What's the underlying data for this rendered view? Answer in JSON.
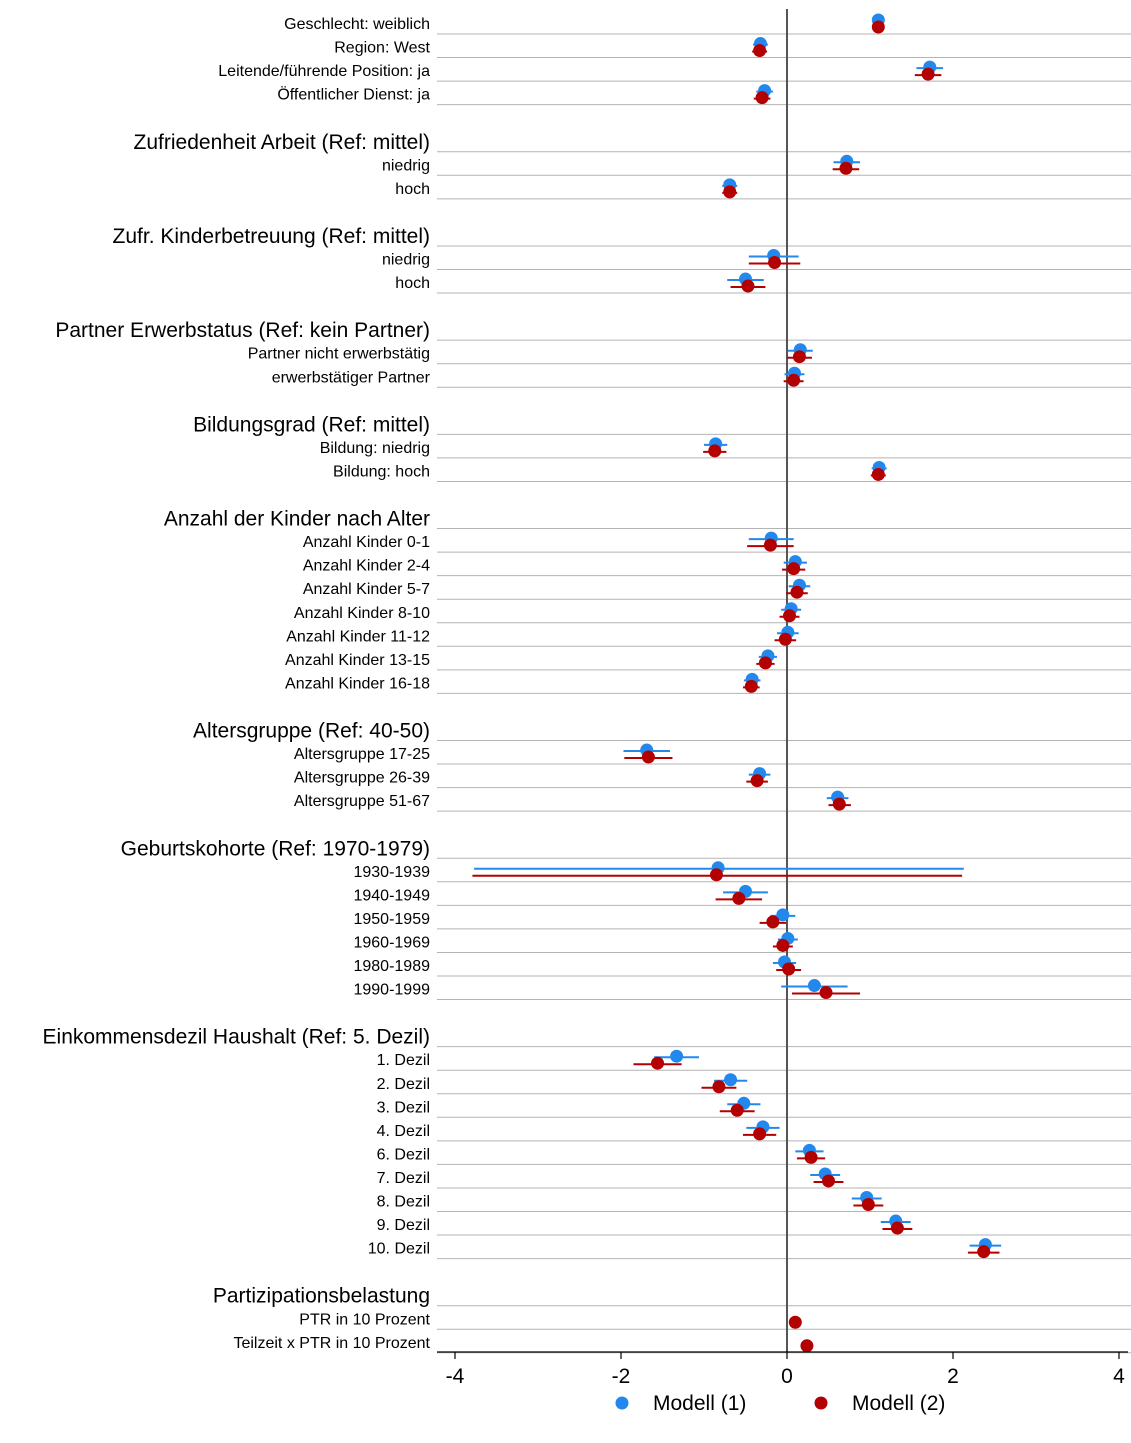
{
  "chart_data": {
    "type": "forest",
    "xlim": [
      -4,
      4
    ],
    "xticks": [
      -4,
      -2,
      0,
      2,
      4
    ],
    "xtick_labels": [
      "-4",
      "-2",
      "0",
      "2",
      "4"
    ],
    "reference_line": 0,
    "legend": {
      "placement": "bottom-center",
      "entries": [
        {
          "label": "Modell (1)",
          "color": "#2288ee"
        },
        {
          "label": "Modell (2)",
          "color": "#b30000"
        }
      ]
    },
    "rows": [
      {
        "kind": "item",
        "label": "Geschlecht: weiblich",
        "m1": [
          1.1,
          1.03,
          1.17
        ],
        "m2": [
          1.1,
          1.03,
          1.17
        ]
      },
      {
        "kind": "item",
        "label": "Region: West",
        "m1": [
          -0.32,
          -0.41,
          -0.23
        ],
        "m2": [
          -0.33,
          -0.42,
          -0.24
        ]
      },
      {
        "kind": "item",
        "label": "Leitende/führende Position: ja",
        "m1": [
          1.72,
          1.56,
          1.88
        ],
        "m2": [
          1.7,
          1.54,
          1.86
        ]
      },
      {
        "kind": "item",
        "label": "Öffentlicher Dienst: ja",
        "m1": [
          -0.27,
          -0.37,
          -0.17
        ],
        "m2": [
          -0.3,
          -0.4,
          -0.2
        ]
      },
      {
        "kind": "header",
        "label": "Zufriedenheit Arbeit (Ref: mittel)"
      },
      {
        "kind": "item",
        "label": "niedrig",
        "m1": [
          0.72,
          0.56,
          0.88
        ],
        "m2": [
          0.71,
          0.55,
          0.87
        ]
      },
      {
        "kind": "item",
        "label": "hoch",
        "m1": [
          -0.69,
          -0.78,
          -0.6
        ],
        "m2": [
          -0.69,
          -0.78,
          -0.6
        ]
      },
      {
        "kind": "header",
        "label": "Zufr. Kinderbetreuung (Ref: mittel)"
      },
      {
        "kind": "item",
        "label": "niedrig",
        "m1": [
          -0.16,
          -0.46,
          0.14
        ],
        "m2": [
          -0.15,
          -0.46,
          0.16
        ]
      },
      {
        "kind": "item",
        "label": "hoch",
        "m1": [
          -0.5,
          -0.72,
          -0.28
        ],
        "m2": [
          -0.47,
          -0.68,
          -0.26
        ]
      },
      {
        "kind": "header",
        "label": "Partner Erwerbstatus (Ref: kein Partner)"
      },
      {
        "kind": "item",
        "label": "Partner nicht erwerbstätig",
        "m1": [
          0.16,
          0.01,
          0.31
        ],
        "m2": [
          0.15,
          0.0,
          0.3
        ]
      },
      {
        "kind": "item",
        "label": "erwerbstätiger Partner",
        "m1": [
          0.09,
          -0.03,
          0.21
        ],
        "m2": [
          0.08,
          -0.04,
          0.2
        ]
      },
      {
        "kind": "header",
        "label": "Bildungsgrad (Ref: mittel)"
      },
      {
        "kind": "item",
        "label": "Bildung: niedrig",
        "m1": [
          -0.86,
          -1.0,
          -0.72
        ],
        "m2": [
          -0.87,
          -1.01,
          -0.73
        ]
      },
      {
        "kind": "item",
        "label": "Bildung: hoch",
        "m1": [
          1.11,
          1.02,
          1.2
        ],
        "m2": [
          1.1,
          1.01,
          1.19
        ]
      },
      {
        "kind": "header",
        "label": "Anzahl der Kinder nach Alter"
      },
      {
        "kind": "item",
        "label": "Anzahl Kinder 0-1",
        "m1": [
          -0.19,
          -0.46,
          0.08
        ],
        "m2": [
          -0.2,
          -0.48,
          0.08
        ]
      },
      {
        "kind": "item",
        "label": "Anzahl Kinder 2-4",
        "m1": [
          0.1,
          -0.04,
          0.24
        ],
        "m2": [
          0.08,
          -0.06,
          0.22
        ]
      },
      {
        "kind": "item",
        "label": "Anzahl Kinder 5-7",
        "m1": [
          0.15,
          0.02,
          0.28
        ],
        "m2": [
          0.12,
          -0.01,
          0.25
        ]
      },
      {
        "kind": "item",
        "label": "Anzahl Kinder 8-10",
        "m1": [
          0.05,
          -0.07,
          0.17
        ],
        "m2": [
          0.03,
          -0.09,
          0.15
        ]
      },
      {
        "kind": "item",
        "label": "Anzahl Kinder 11-12",
        "m1": [
          0.01,
          -0.12,
          0.14
        ],
        "m2": [
          -0.02,
          -0.15,
          0.11
        ]
      },
      {
        "kind": "item",
        "label": "Anzahl Kinder 13-15",
        "m1": [
          -0.23,
          -0.34,
          -0.12
        ],
        "m2": [
          -0.26,
          -0.37,
          -0.15
        ]
      },
      {
        "kind": "item",
        "label": "Anzahl Kinder 16-18",
        "m1": [
          -0.42,
          -0.52,
          -0.32
        ],
        "m2": [
          -0.43,
          -0.53,
          -0.33
        ]
      },
      {
        "kind": "header",
        "label": "Altersgruppe (Ref: 40-50)"
      },
      {
        "kind": "item",
        "label": "Altersgruppe 17-25",
        "m1": [
          -1.69,
          -1.97,
          -1.41
        ],
        "m2": [
          -1.67,
          -1.96,
          -1.38
        ]
      },
      {
        "kind": "item",
        "label": "Altersgruppe 26-39",
        "m1": [
          -0.33,
          -0.46,
          -0.2
        ],
        "m2": [
          -0.36,
          -0.49,
          -0.23
        ]
      },
      {
        "kind": "item",
        "label": "Altersgruppe 51-67",
        "m1": [
          0.61,
          0.48,
          0.74
        ],
        "m2": [
          0.63,
          0.5,
          0.77
        ]
      },
      {
        "kind": "header",
        "label": "Geburtskohorte (Ref: 1970-1979)"
      },
      {
        "kind": "item",
        "label": "1930-1939",
        "m1": [
          -0.83,
          -3.77,
          2.13
        ],
        "m2": [
          -0.85,
          -3.79,
          2.11
        ]
      },
      {
        "kind": "item",
        "label": "1940-1949",
        "m1": [
          -0.5,
          -0.77,
          -0.23
        ],
        "m2": [
          -0.58,
          -0.86,
          -0.3
        ]
      },
      {
        "kind": "item",
        "label": "1950-1959",
        "m1": [
          -0.05,
          -0.2,
          0.1
        ],
        "m2": [
          -0.17,
          -0.33,
          -0.01
        ]
      },
      {
        "kind": "item",
        "label": "1960-1969",
        "m1": [
          0.01,
          -0.11,
          0.13
        ],
        "m2": [
          -0.05,
          -0.17,
          0.07
        ]
      },
      {
        "kind": "item",
        "label": "1980-1989",
        "m1": [
          -0.03,
          -0.17,
          0.11
        ],
        "m2": [
          0.02,
          -0.13,
          0.17
        ]
      },
      {
        "kind": "item",
        "label": "1990-1999",
        "m1": [
          0.33,
          -0.07,
          0.73
        ],
        "m2": [
          0.47,
          0.06,
          0.88
        ]
      },
      {
        "kind": "header",
        "label": "Einkommensdezil Haushalt (Ref: 5. Dezil)"
      },
      {
        "kind": "item",
        "label": "1. Dezil",
        "m1": [
          -1.33,
          -1.6,
          -1.06
        ],
        "m2": [
          -1.56,
          -1.85,
          -1.27
        ]
      },
      {
        "kind": "item",
        "label": "2. Dezil",
        "m1": [
          -0.68,
          -0.88,
          -0.48
        ],
        "m2": [
          -0.82,
          -1.03,
          -0.61
        ]
      },
      {
        "kind": "item",
        "label": "3. Dezil",
        "m1": [
          -0.52,
          -0.72,
          -0.32
        ],
        "m2": [
          -0.6,
          -0.81,
          -0.39
        ]
      },
      {
        "kind": "item",
        "label": "4. Dezil",
        "m1": [
          -0.29,
          -0.49,
          -0.09
        ],
        "m2": [
          -0.33,
          -0.53,
          -0.13
        ]
      },
      {
        "kind": "item",
        "label": "6. Dezil",
        "m1": [
          0.27,
          0.1,
          0.44
        ],
        "m2": [
          0.29,
          0.12,
          0.46
        ]
      },
      {
        "kind": "item",
        "label": "7. Dezil",
        "m1": [
          0.46,
          0.28,
          0.64
        ],
        "m2": [
          0.5,
          0.32,
          0.68
        ]
      },
      {
        "kind": "item",
        "label": "8. Dezil",
        "m1": [
          0.96,
          0.78,
          1.14
        ],
        "m2": [
          0.98,
          0.8,
          1.16
        ]
      },
      {
        "kind": "item",
        "label": "9. Dezil",
        "m1": [
          1.31,
          1.13,
          1.49
        ],
        "m2": [
          1.33,
          1.15,
          1.51
        ]
      },
      {
        "kind": "item",
        "label": "10. Dezil",
        "m1": [
          2.39,
          2.2,
          2.58
        ],
        "m2": [
          2.37,
          2.18,
          2.56
        ]
      },
      {
        "kind": "header",
        "label": "Partizipationsbelastung"
      },
      {
        "kind": "item",
        "label": "PTR in 10 Prozent",
        "m1": null,
        "m2": [
          0.1,
          0.09,
          0.11
        ]
      },
      {
        "kind": "item",
        "label": "Teilzeit x PTR in 10 Prozent",
        "m1": null,
        "m2": [
          0.24,
          0.23,
          0.25
        ]
      }
    ]
  }
}
